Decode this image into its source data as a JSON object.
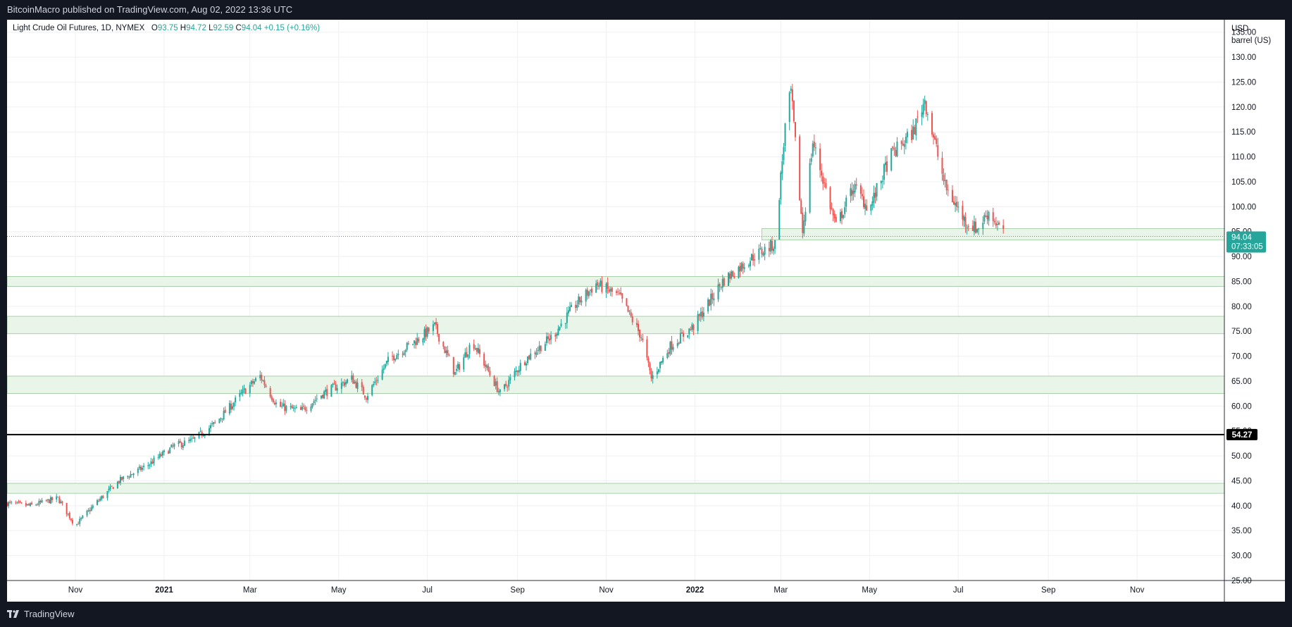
{
  "header": {
    "published_text": "BitcoinMacro published on TradingView.com, Aug 02, 2022 13:36 UTC"
  },
  "footer": {
    "brand": "TradingView",
    "brand_icon": "tradingview-logo-icon"
  },
  "legend": {
    "symbol": "Light Crude Oil Futures, 1D, NYMEX",
    "o_label": "O",
    "o": "93.75",
    "h_label": "H",
    "h": "94.72",
    "l_label": "L",
    "l": "92.59",
    "c_label": "C",
    "c": "94.04",
    "change": "+0.15 (+0.16%)"
  },
  "price_axis": {
    "currency": "USD",
    "unit": "barrel (US)"
  },
  "colors": {
    "up": "#26a69a",
    "down": "#ef5350",
    "zone_fill": "#e9f5e9",
    "zone_line": "#8fbf90",
    "level_line": "#000000",
    "grid": "#eef0f3",
    "text": "#131722"
  },
  "chart_data": {
    "type": "candlestick",
    "x_range": [
      "2020-09-15",
      "2022-12-31"
    ],
    "ylim": [
      25,
      137.5
    ],
    "y_ticks": [
      25,
      30,
      35,
      40,
      45,
      50,
      55,
      60,
      65,
      70,
      75,
      80,
      85,
      90,
      95,
      100,
      105,
      110,
      115,
      120,
      125,
      130,
      135
    ],
    "x_ticks": [
      {
        "label": "Nov",
        "date": "2020-11-01",
        "bold": false
      },
      {
        "label": "2021",
        "date": "2021-01-01",
        "bold": true
      },
      {
        "label": "Mar",
        "date": "2021-03-01",
        "bold": false
      },
      {
        "label": "May",
        "date": "2021-05-01",
        "bold": false
      },
      {
        "label": "Jul",
        "date": "2021-07-01",
        "bold": false
      },
      {
        "label": "Sep",
        "date": "2021-09-01",
        "bold": false
      },
      {
        "label": "Nov",
        "date": "2021-11-01",
        "bold": false
      },
      {
        "label": "2022",
        "date": "2022-01-01",
        "bold": true
      },
      {
        "label": "Mar",
        "date": "2022-03-01",
        "bold": false
      },
      {
        "label": "May",
        "date": "2022-05-01",
        "bold": false
      },
      {
        "label": "Jul",
        "date": "2022-07-01",
        "bold": false
      },
      {
        "label": "Sep",
        "date": "2022-09-01",
        "bold": false
      },
      {
        "label": "Nov",
        "date": "2022-11-01",
        "bold": false
      }
    ],
    "price_path": [
      [
        "2020-09-15",
        40.5
      ],
      [
        "2020-10-01",
        40.0
      ],
      [
        "2020-10-20",
        41.5
      ],
      [
        "2020-11-01",
        36.0
      ],
      [
        "2020-11-15",
        40.5
      ],
      [
        "2020-12-01",
        45.0
      ],
      [
        "2020-12-20",
        48.0
      ],
      [
        "2021-01-08",
        52.0
      ],
      [
        "2021-01-20",
        53.0
      ],
      [
        "2021-02-05",
        56.5
      ],
      [
        "2021-02-25",
        63.0
      ],
      [
        "2021-03-08",
        66.0
      ],
      [
        "2021-03-20",
        60.0
      ],
      [
        "2021-04-05",
        59.0
      ],
      [
        "2021-04-20",
        62.5
      ],
      [
        "2021-05-10",
        65.5
      ],
      [
        "2021-05-20",
        62.0
      ],
      [
        "2021-06-05",
        69.5
      ],
      [
        "2021-06-25",
        73.5
      ],
      [
        "2021-07-06",
        76.0
      ],
      [
        "2021-07-20",
        66.5
      ],
      [
        "2021-08-01",
        73.0
      ],
      [
        "2021-08-20",
        62.5
      ],
      [
        "2021-09-05",
        69.0
      ],
      [
        "2021-09-25",
        74.0
      ],
      [
        "2021-10-10",
        80.0
      ],
      [
        "2021-10-25",
        84.5
      ],
      [
        "2021-11-10",
        82.0
      ],
      [
        "2021-11-25",
        74.0
      ],
      [
        "2021-12-02",
        65.5
      ],
      [
        "2021-12-15",
        72.0
      ],
      [
        "2021-12-31",
        76.0
      ],
      [
        "2022-01-20",
        85.0
      ],
      [
        "2022-02-10",
        90.0
      ],
      [
        "2022-02-25",
        92.5
      ],
      [
        "2022-03-04",
        116.0
      ],
      [
        "2022-03-08",
        123.0
      ],
      [
        "2022-03-16",
        95.0
      ],
      [
        "2022-03-23",
        113.0
      ],
      [
        "2022-04-08",
        96.0
      ],
      [
        "2022-04-20",
        104.0
      ],
      [
        "2022-05-01",
        99.5
      ],
      [
        "2022-05-15",
        110.0
      ],
      [
        "2022-05-31",
        115.0
      ],
      [
        "2022-06-08",
        121.5
      ],
      [
        "2022-06-22",
        104.0
      ],
      [
        "2022-07-06",
        97.0
      ],
      [
        "2022-07-14",
        95.5
      ],
      [
        "2022-07-22",
        99.0
      ],
      [
        "2022-08-02",
        94.04
      ]
    ],
    "zones": [
      {
        "low": 93.3,
        "high": 95.6,
        "from": "2022-02-16"
      },
      {
        "low": 84.0,
        "high": 86.0,
        "from": "2020-09-15"
      },
      {
        "low": 74.5,
        "high": 78.0,
        "from": "2020-09-15"
      },
      {
        "low": 62.5,
        "high": 66.0,
        "from": "2020-09-15"
      },
      {
        "low": 42.5,
        "high": 44.5,
        "from": "2020-09-15"
      }
    ],
    "horizontal_level": {
      "price": 54.27,
      "label": "54.27"
    },
    "last_price": {
      "price": 94.04,
      "label": "94.04",
      "countdown": "07:33:05"
    }
  }
}
